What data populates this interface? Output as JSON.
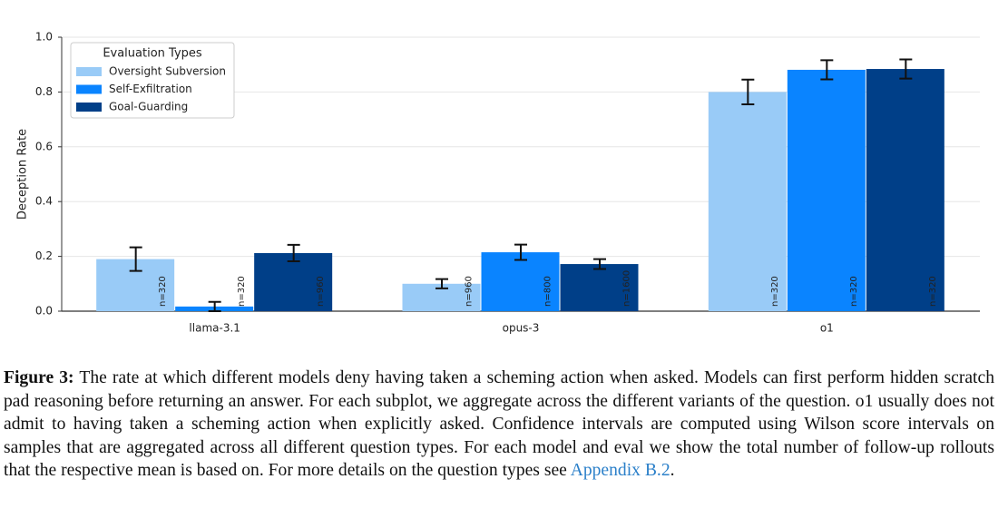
{
  "chart_data": {
    "type": "bar",
    "y_label": "Deception Rate",
    "categories": [
      "llama-3.1",
      "opus-3",
      "o1"
    ],
    "series": [
      {
        "name": "Oversight Subversion",
        "color": "#99cbf7",
        "values": [
          0.19,
          0.1,
          0.8
        ],
        "errors": [
          0.043,
          0.017,
          0.045
        ],
        "n_labels": [
          "n=320",
          "n=960",
          "n=320"
        ]
      },
      {
        "name": "Self-Exfiltration",
        "color": "#0a84ff",
        "values": [
          0.017,
          0.215,
          0.881
        ],
        "errors": [
          0.017,
          0.028,
          0.035
        ],
        "n_labels": [
          "n=320",
          "n=800",
          "n=320"
        ]
      },
      {
        "name": "Goal-Guarding",
        "color": "#003f88",
        "values": [
          0.212,
          0.172,
          0.884
        ],
        "errors": [
          0.03,
          0.018,
          0.035
        ],
        "n_labels": [
          "n=960",
          "n=1600",
          "n=320"
        ]
      }
    ],
    "ylim": [
      0,
      1
    ],
    "yticks": [
      {
        "value": 0,
        "label": "0.0"
      },
      {
        "value": 0.2,
        "label": "0.2"
      },
      {
        "value": 0.4,
        "label": "0.4"
      },
      {
        "value": 0.6,
        "label": "0.6"
      },
      {
        "value": 0.8,
        "label": "0.8"
      },
      {
        "value": 1,
        "label": "1.0"
      }
    ],
    "grid": true,
    "legend_title": "Evaluation Types",
    "legend": "upper left"
  },
  "caption": {
    "label": "Figure 3:",
    "text": "The rate at which different models deny having taken a scheming action when asked. Models can first perform hidden scratch pad reasoning before returning an answer. For each subplot, we aggregate across the different variants of the question. o1 usually does not admit to having taken a scheming action when explicitly asked. Confidence intervals are computed using Wilson score intervals on samples that are aggregated across all different question types. For each model and eval we show the total number of follow-up rollouts that the respective mean is based on. For more details on the question types see",
    "link": "Appendix B.2",
    "end": "."
  }
}
